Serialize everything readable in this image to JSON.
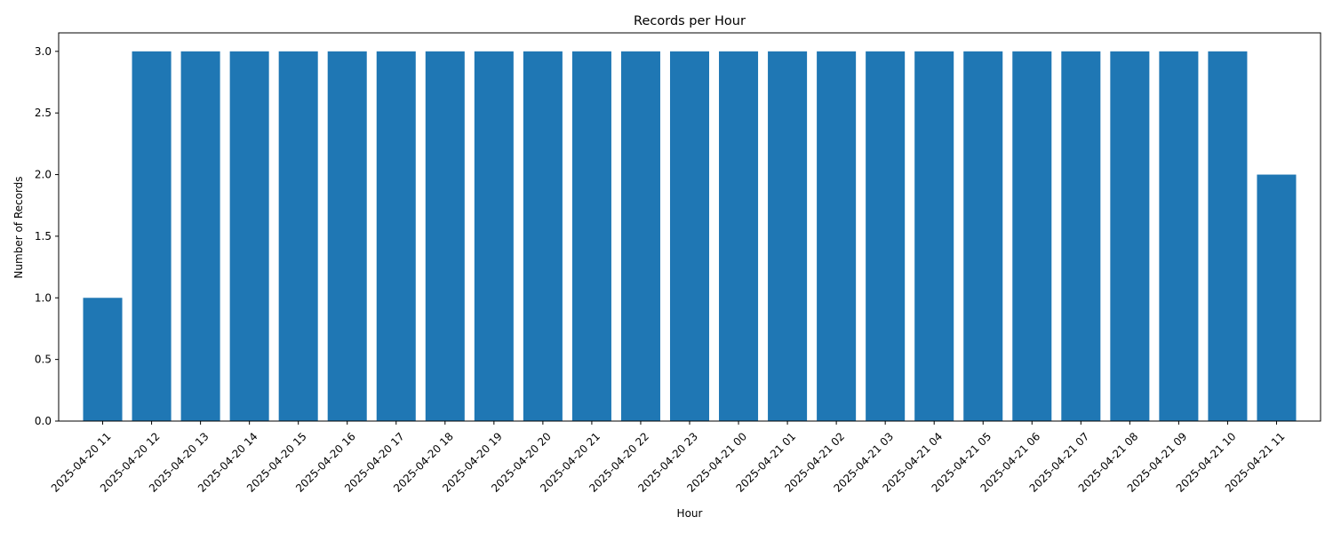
{
  "chart_data": {
    "type": "bar",
    "title": "Records per Hour",
    "xlabel": "Hour",
    "ylabel": "Number of Records",
    "ylim": [
      0,
      3.15
    ],
    "yticks": [
      "0.0",
      "0.5",
      "1.0",
      "1.5",
      "2.0",
      "2.5",
      "3.0"
    ],
    "grid": false,
    "legend": "none",
    "bar_color": "#1f77b4",
    "categories": [
      "2025-04-20 11",
      "2025-04-20 12",
      "2025-04-20 13",
      "2025-04-20 14",
      "2025-04-20 15",
      "2025-04-20 16",
      "2025-04-20 17",
      "2025-04-20 18",
      "2025-04-20 19",
      "2025-04-20 20",
      "2025-04-20 21",
      "2025-04-20 22",
      "2025-04-20 23",
      "2025-04-21 00",
      "2025-04-21 01",
      "2025-04-21 02",
      "2025-04-21 03",
      "2025-04-21 04",
      "2025-04-21 05",
      "2025-04-21 06",
      "2025-04-21 07",
      "2025-04-21 08",
      "2025-04-21 09",
      "2025-04-21 10",
      "2025-04-21 11"
    ],
    "values": [
      1,
      3,
      3,
      3,
      3,
      3,
      3,
      3,
      3,
      3,
      3,
      3,
      3,
      3,
      3,
      3,
      3,
      3,
      3,
      3,
      3,
      3,
      3,
      3,
      2
    ]
  }
}
